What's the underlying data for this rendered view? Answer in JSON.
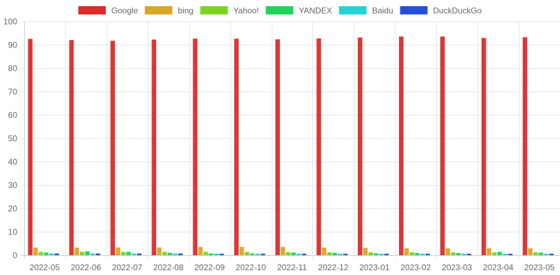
{
  "chart_data": {
    "type": "bar",
    "title": "",
    "xlabel": "",
    "ylabel": "",
    "ylim": [
      0,
      100
    ],
    "yticks": [
      0,
      10,
      20,
      30,
      40,
      50,
      60,
      70,
      80,
      90,
      100
    ],
    "grid": true,
    "legend_position": "top-center",
    "categories": [
      "2022-05",
      "2022-06",
      "2022-07",
      "2022-08",
      "2022-09",
      "2022-10",
      "2022-11",
      "2022-12",
      "2023-01",
      "2023-02",
      "2023-03",
      "2023-04",
      "2023-05"
    ],
    "series": [
      {
        "name": "Google",
        "color": "#dc2b2b",
        "values": [
          92.4,
          91.9,
          91.6,
          92.1,
          92.5,
          92.5,
          92.2,
          92.6,
          93.0,
          93.4,
          93.4,
          92.8,
          93.1
        ]
      },
      {
        "name": "bing",
        "color": "#d7a726",
        "values": [
          3.1,
          3.1,
          3.2,
          3.2,
          3.4,
          3.4,
          3.4,
          3.1,
          3.0,
          2.8,
          2.8,
          2.8,
          2.8
        ]
      },
      {
        "name": "Yahoo!",
        "color": "#7ed321",
        "values": [
          1.3,
          1.3,
          1.3,
          1.3,
          1.3,
          1.3,
          1.2,
          1.1,
          1.1,
          1.1,
          1.1,
          1.1,
          1.1
        ]
      },
      {
        "name": "YANDEX",
        "color": "#1fd35a",
        "values": [
          1.0,
          1.5,
          1.3,
          0.9,
          0.6,
          0.6,
          1.0,
          0.9,
          0.7,
          0.8,
          0.8,
          1.3,
          1.0
        ]
      },
      {
        "name": "Baidu",
        "color": "#26d3d3",
        "values": [
          0.6,
          0.6,
          0.6,
          0.6,
          0.5,
          0.5,
          0.5,
          0.5,
          0.5,
          0.5,
          0.5,
          0.5,
          0.5
        ]
      },
      {
        "name": "DuckDuckGo",
        "color": "#2750d7",
        "values": [
          0.6,
          0.6,
          0.6,
          0.6,
          0.5,
          0.5,
          0.5,
          0.5,
          0.5,
          0.5,
          0.5,
          0.5,
          0.5
        ]
      }
    ]
  }
}
